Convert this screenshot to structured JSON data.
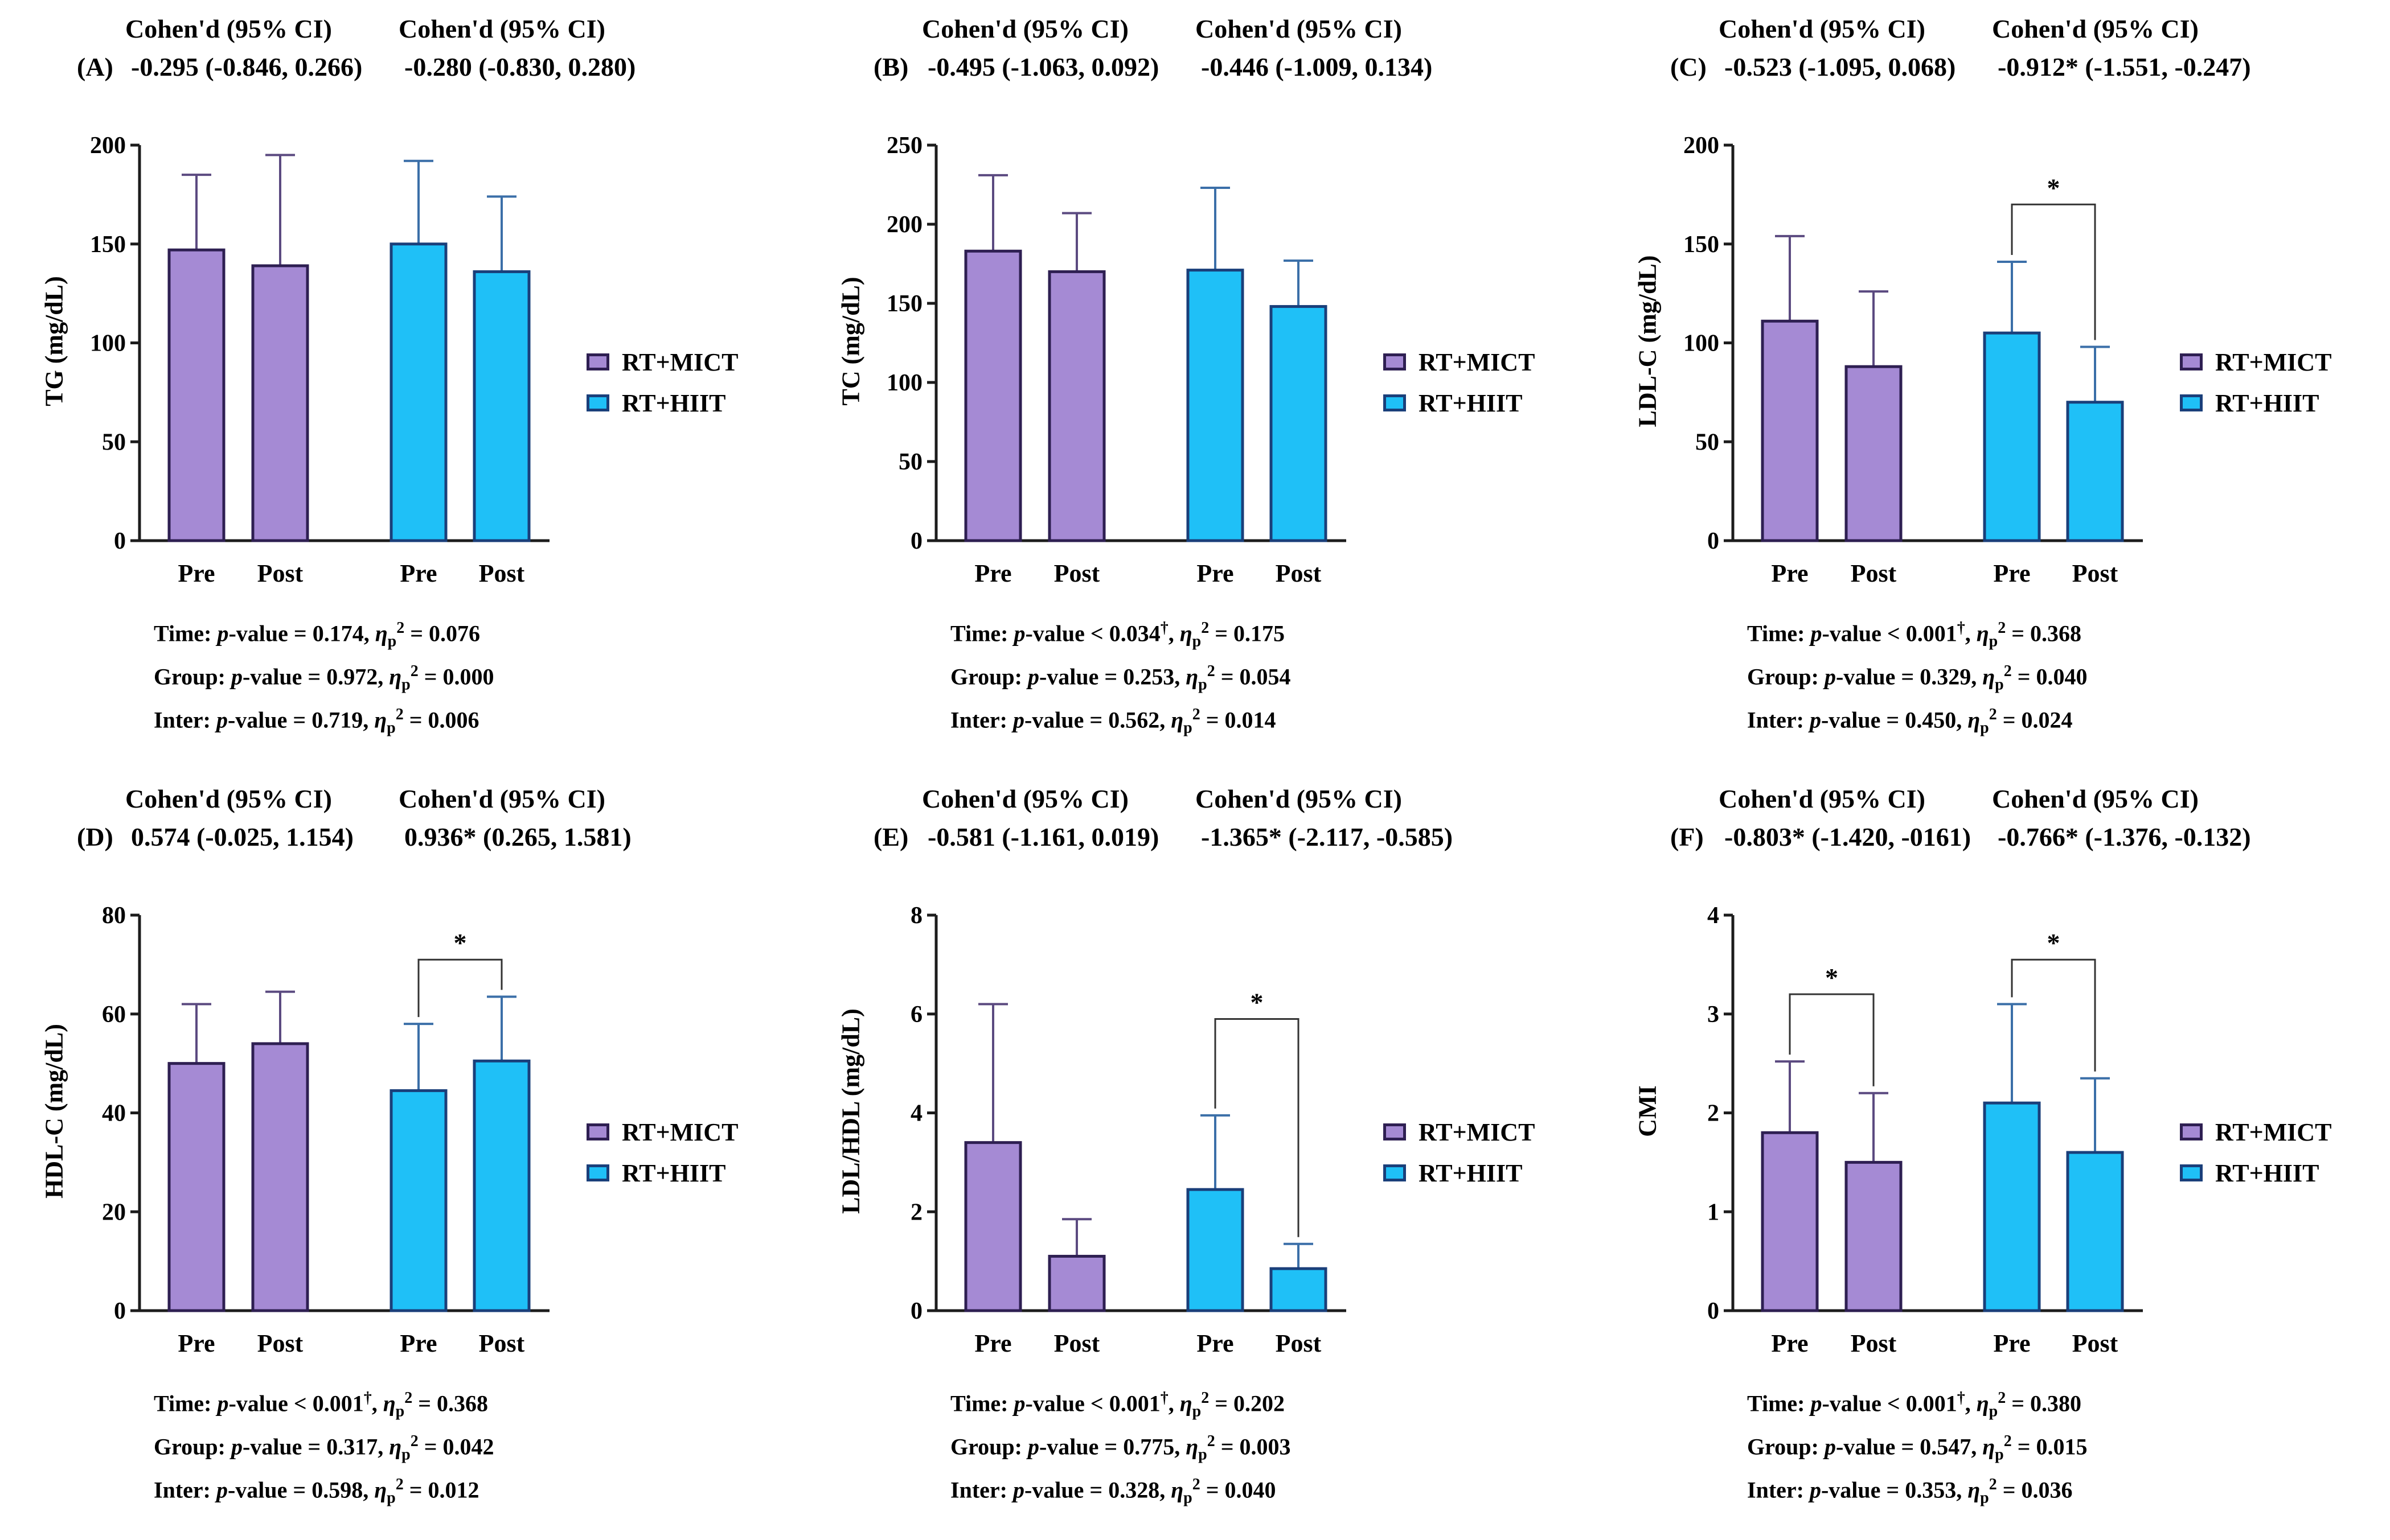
{
  "colors": {
    "mict": "#a58ad4",
    "hiit": "#1fc0f7",
    "mict_border": "#2e1f52",
    "hiit_border": "#1a3f7a",
    "axis": "#1c1c1c"
  },
  "common": {
    "cohen_header": "Cohen'd (95% CI)",
    "categories": [
      "Pre",
      "Post",
      "Pre",
      "Post"
    ],
    "legend": [
      "RT+MICT",
      "RT+HIIT"
    ],
    "stat_labels": [
      "Time:",
      "Group:",
      "Inter:"
    ],
    "pvalue_word": "p",
    "pvalue_suffix": "-value",
    "eta_symbol": "η",
    "eta_sub": "p",
    "eta_sup": "2",
    "dagger": "†",
    "star": "*"
  },
  "chart_data": [
    {
      "panel": "(A)",
      "type": "bar",
      "ylabel": "TG (mg/dL)",
      "ylim": [
        0,
        200
      ],
      "yticks": [
        "0",
        "50",
        "100",
        "150",
        "200"
      ],
      "cohen": [
        "-0.295 (-0.846, 0.266)",
        "-0.280 (-0.830, 0.280)"
      ],
      "series": [
        {
          "name": "RT+MICT",
          "values": [
            147,
            139
          ],
          "errors": [
            38,
            56
          ]
        },
        {
          "name": "RT+HIIT",
          "values": [
            150,
            136
          ],
          "errors": [
            42,
            38
          ]
        }
      ],
      "significance": [],
      "stats": [
        {
          "op": "=",
          "p": "0.174",
          "dagger": false,
          "eta": "0.076"
        },
        {
          "op": "=",
          "p": "0.972",
          "dagger": false,
          "eta": "0.000"
        },
        {
          "op": "=",
          "p": "0.719",
          "dagger": false,
          "eta": "0.006"
        }
      ]
    },
    {
      "panel": "(B)",
      "type": "bar",
      "ylabel": "TC (mg/dL)",
      "ylim": [
        0,
        250
      ],
      "yticks": [
        "0",
        "50",
        "100",
        "150",
        "200",
        "250"
      ],
      "cohen": [
        "-0.495 (-1.063, 0.092)",
        "-0.446 (-1.009, 0.134)"
      ],
      "series": [
        {
          "name": "RT+MICT",
          "values": [
            183,
            170
          ],
          "errors": [
            48,
            37
          ]
        },
        {
          "name": "RT+HIIT",
          "values": [
            171,
            148
          ],
          "errors": [
            52,
            29
          ]
        }
      ],
      "significance": [],
      "stats": [
        {
          "op": "<",
          "p": "0.034",
          "dagger": true,
          "eta": "0.175"
        },
        {
          "op": "=",
          "p": "0.253",
          "dagger": false,
          "eta": "0.054"
        },
        {
          "op": "=",
          "p": "0.562",
          "dagger": false,
          "eta": "0.014"
        }
      ]
    },
    {
      "panel": "(C)",
      "type": "bar",
      "ylabel": "LDL-C (mg/dL)",
      "ylim": [
        0,
        200
      ],
      "yticks": [
        "0",
        "50",
        "100",
        "150",
        "200"
      ],
      "cohen": [
        "-0.523 (-1.095, 0.068)",
        "-0.912* (-1.551, -0.247)"
      ],
      "series": [
        {
          "name": "RT+MICT",
          "values": [
            111,
            88
          ],
          "errors": [
            43,
            38
          ]
        },
        {
          "name": "RT+HIIT",
          "values": [
            105,
            70
          ],
          "errors": [
            36,
            28
          ]
        }
      ],
      "significance": [
        {
          "from": 2,
          "to": 3,
          "y": 170
        }
      ],
      "stats": [
        {
          "op": "<",
          "p": "0.001",
          "dagger": true,
          "eta": "0.368"
        },
        {
          "op": "=",
          "p": "0.329",
          "dagger": false,
          "eta": "0.040"
        },
        {
          "op": "=",
          "p": "0.450",
          "dagger": false,
          "eta": "0.024"
        }
      ]
    },
    {
      "panel": "(D)",
      "type": "bar",
      "ylabel": "HDL-C (mg/dL)",
      "ylim": [
        0,
        80
      ],
      "yticks": [
        "0",
        "20",
        "40",
        "60",
        "80"
      ],
      "cohen": [
        "0.574 (-0.025, 1.154)",
        "0.936* (0.265, 1.581)"
      ],
      "series": [
        {
          "name": "RT+MICT",
          "values": [
            50,
            54
          ],
          "errors": [
            12,
            10.5
          ]
        },
        {
          "name": "RT+HIIT",
          "values": [
            44.5,
            50.5
          ],
          "errors": [
            13.5,
            13
          ]
        }
      ],
      "significance": [
        {
          "from": 2,
          "to": 3,
          "y": 71
        }
      ],
      "stats": [
        {
          "op": "<",
          "p": "0.001",
          "dagger": true,
          "eta": "0.368"
        },
        {
          "op": "=",
          "p": "0.317",
          "dagger": false,
          "eta": "0.042"
        },
        {
          "op": "=",
          "p": "0.598",
          "dagger": false,
          "eta": "0.012"
        }
      ]
    },
    {
      "panel": "(E)",
      "type": "bar",
      "ylabel": "LDL/HDL (mg/dL)",
      "ylim": [
        0,
        8
      ],
      "yticks": [
        "0",
        "2",
        "4",
        "6",
        "8"
      ],
      "cohen": [
        "-0.581 (-1.161, 0.019)",
        "-1.365* (-2.117, -0.585)"
      ],
      "series": [
        {
          "name": "RT+MICT",
          "values": [
            3.4,
            1.1
          ],
          "errors": [
            2.8,
            0.75
          ]
        },
        {
          "name": "RT+HIIT",
          "values": [
            2.45,
            0.85
          ],
          "errors": [
            1.5,
            0.5
          ]
        }
      ],
      "significance": [
        {
          "from": 2,
          "to": 3,
          "y": 5.9
        }
      ],
      "stats": [
        {
          "op": "<",
          "p": "0.001",
          "dagger": true,
          "eta": "0.202"
        },
        {
          "op": "=",
          "p": "0.775",
          "dagger": false,
          "eta": "0.003"
        },
        {
          "op": "=",
          "p": "0.328",
          "dagger": false,
          "eta": "0.040"
        }
      ]
    },
    {
      "panel": "(F)",
      "type": "bar",
      "ylabel": "CMI",
      "ylim": [
        0,
        4
      ],
      "yticks": [
        "0",
        "1",
        "2",
        "3",
        "4"
      ],
      "cohen": [
        "-0.803* (-1.420, -0161)",
        "-0.766* (-1.376, -0.132)"
      ],
      "series": [
        {
          "name": "RT+MICT",
          "values": [
            1.8,
            1.5
          ],
          "errors": [
            0.72,
            0.7
          ]
        },
        {
          "name": "RT+HIIT",
          "values": [
            2.1,
            1.6
          ],
          "errors": [
            1.0,
            0.75
          ]
        }
      ],
      "significance": [
        {
          "from": 0,
          "to": 1,
          "y": 3.2
        },
        {
          "from": 2,
          "to": 3,
          "y": 3.55
        }
      ],
      "stats": [
        {
          "op": "<",
          "p": "0.001",
          "dagger": true,
          "eta": "0.380"
        },
        {
          "op": "=",
          "p": "0.547",
          "dagger": false,
          "eta": "0.015"
        },
        {
          "op": "=",
          "p": "0.353",
          "dagger": false,
          "eta": "0.036"
        }
      ]
    }
  ]
}
